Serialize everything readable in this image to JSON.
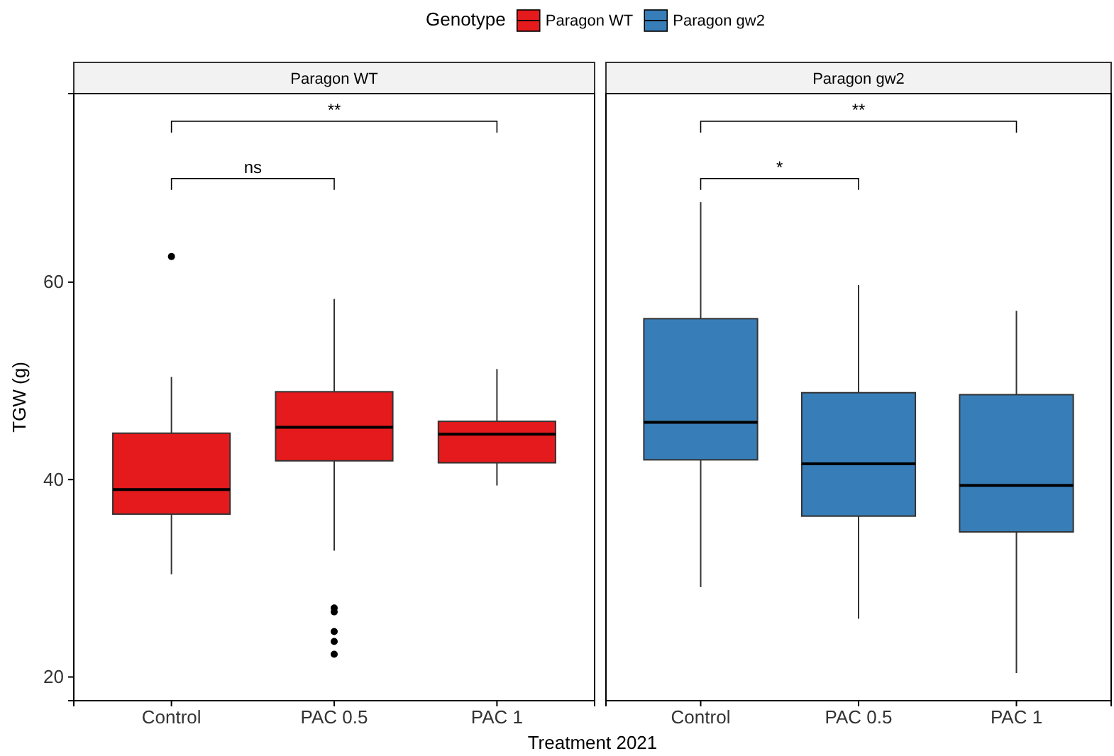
{
  "chart_data": [
    {
      "type": "box",
      "title": "Paragon WT",
      "ylabel": "TGW (g)",
      "xlabel": "Treatment 2021",
      "legend_title": "Genotype",
      "legend": "top",
      "categories": [
        "Control",
        "PAC 0.5",
        "PAC 1"
      ],
      "ylim": [
        17.6,
        79.1
      ],
      "yticks": [
        20,
        40,
        60
      ],
      "grid": false,
      "series": [
        {
          "name": "Paragon WT",
          "color": "#e41a1c",
          "boxes": [
            {
              "low": 30.4,
              "q1": 36.5,
              "median": 39.0,
              "q3": 44.7,
              "high": 50.4,
              "outliers": [
                62.6
              ]
            },
            {
              "low": 32.8,
              "q1": 41.9,
              "median": 45.3,
              "q3": 48.9,
              "high": 58.3,
              "outliers": [
                27.0,
                26.6,
                24.6,
                23.6,
                22.3
              ]
            },
            {
              "low": 39.4,
              "q1": 41.7,
              "median": 44.6,
              "q3": 45.9,
              "high": 51.2
            }
          ]
        }
      ],
      "annotations": [
        {
          "text": "ns"
        },
        {
          "text": "**"
        }
      ]
    },
    {
      "type": "box",
      "title": "Paragon gw2",
      "legend": "top",
      "categories": [
        "Control",
        "PAC 0.5",
        "PAC 1"
      ],
      "ylim": [
        17.6,
        79.1
      ],
      "yticks": [
        20,
        40,
        60
      ],
      "grid": false,
      "tick_labels": "x",
      "series": [
        {
          "name": "Paragon gw2",
          "color": "#377eb8",
          "boxes": [
            {
              "low": 29.1,
              "q1": 42.0,
              "median": 45.8,
              "q3": 56.3,
              "high": 68.1
            },
            {
              "low": 25.9,
              "q1": 36.3,
              "median": 41.6,
              "q3": 48.8,
              "high": 59.7
            },
            {
              "low": 20.4,
              "q1": 34.7,
              "median": 39.4,
              "q3": 48.6,
              "high": 57.1
            }
          ]
        }
      ],
      "annotations": [
        {
          "text": "*"
        },
        {
          "text": "**"
        }
      ]
    }
  ]
}
